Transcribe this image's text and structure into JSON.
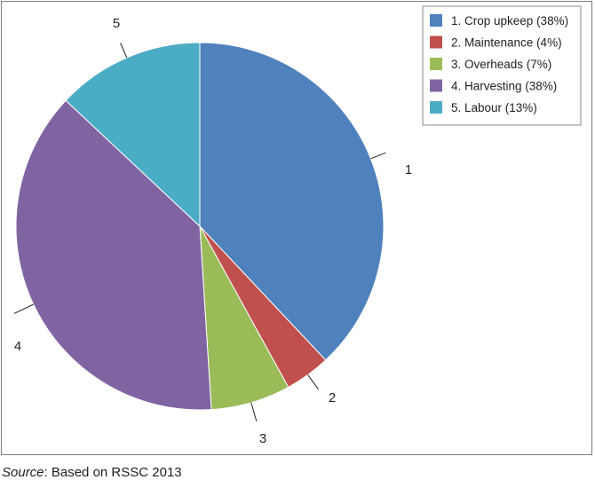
{
  "chart_data": {
    "type": "pie",
    "slices": [
      {
        "callout": "1",
        "legend": "1. Crop upkeep (38%)",
        "value": 38,
        "color": "#4f81bd"
      },
      {
        "callout": "2",
        "legend": "2. Maintenance (4%)",
        "value": 4,
        "color": "#c0504d"
      },
      {
        "callout": "3",
        "legend": "3. Overheads (7%)",
        "value": 7,
        "color": "#9bbb59"
      },
      {
        "callout": "4",
        "legend": "4. Harvesting (38%)",
        "value": 38,
        "color": "#8064a2"
      },
      {
        "callout": "5",
        "legend": "5. Labour (13%)",
        "value": 13,
        "color": "#4bacc6"
      }
    ],
    "start": "12 o'clock",
    "direction": "clockwise",
    "legend_position": "top-right"
  },
  "source": {
    "prefix": "Source",
    "text": ": Based on RSSC 2013"
  }
}
